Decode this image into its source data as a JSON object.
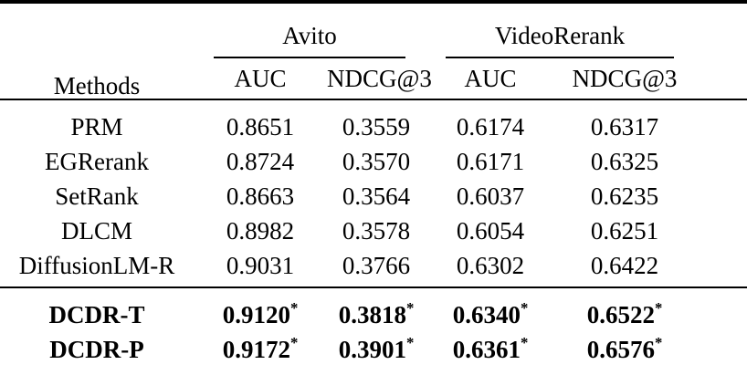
{
  "table": {
    "methods_header": "Methods",
    "groups": [
      {
        "label": "Avito",
        "metrics": [
          "AUC",
          "NDCG@3"
        ]
      },
      {
        "label": "VideoRerank",
        "metrics": [
          "AUC",
          "NDCG@3"
        ]
      }
    ],
    "rows": [
      {
        "method": "PRM",
        "values": [
          "0.8651",
          "0.3559",
          "0.6174",
          "0.6317"
        ]
      },
      {
        "method": "EGRerank",
        "values": [
          "0.8724",
          "0.3570",
          "0.6171",
          "0.6325"
        ]
      },
      {
        "method": "SetRank",
        "values": [
          "0.8663",
          "0.3564",
          "0.6037",
          "0.6235"
        ]
      },
      {
        "method": "DLCM",
        "values": [
          "0.8982",
          "0.3578",
          "0.6054",
          "0.6251"
        ]
      },
      {
        "method": "DiffusionLM-R",
        "values": [
          "0.9031",
          "0.3766",
          "0.6302",
          "0.6422"
        ]
      }
    ],
    "highlight_rows": [
      {
        "method": "DCDR-T",
        "values": [
          "0.9120",
          "0.3818",
          "0.6340",
          "0.6522"
        ]
      },
      {
        "method": "DCDR-P",
        "values": [
          "0.9172",
          "0.3901",
          "0.6361",
          "0.6576"
        ]
      }
    ],
    "significance_marker": "*"
  },
  "colors": {
    "text": "#000000",
    "background": "#ffffff",
    "rule": "#000000"
  }
}
